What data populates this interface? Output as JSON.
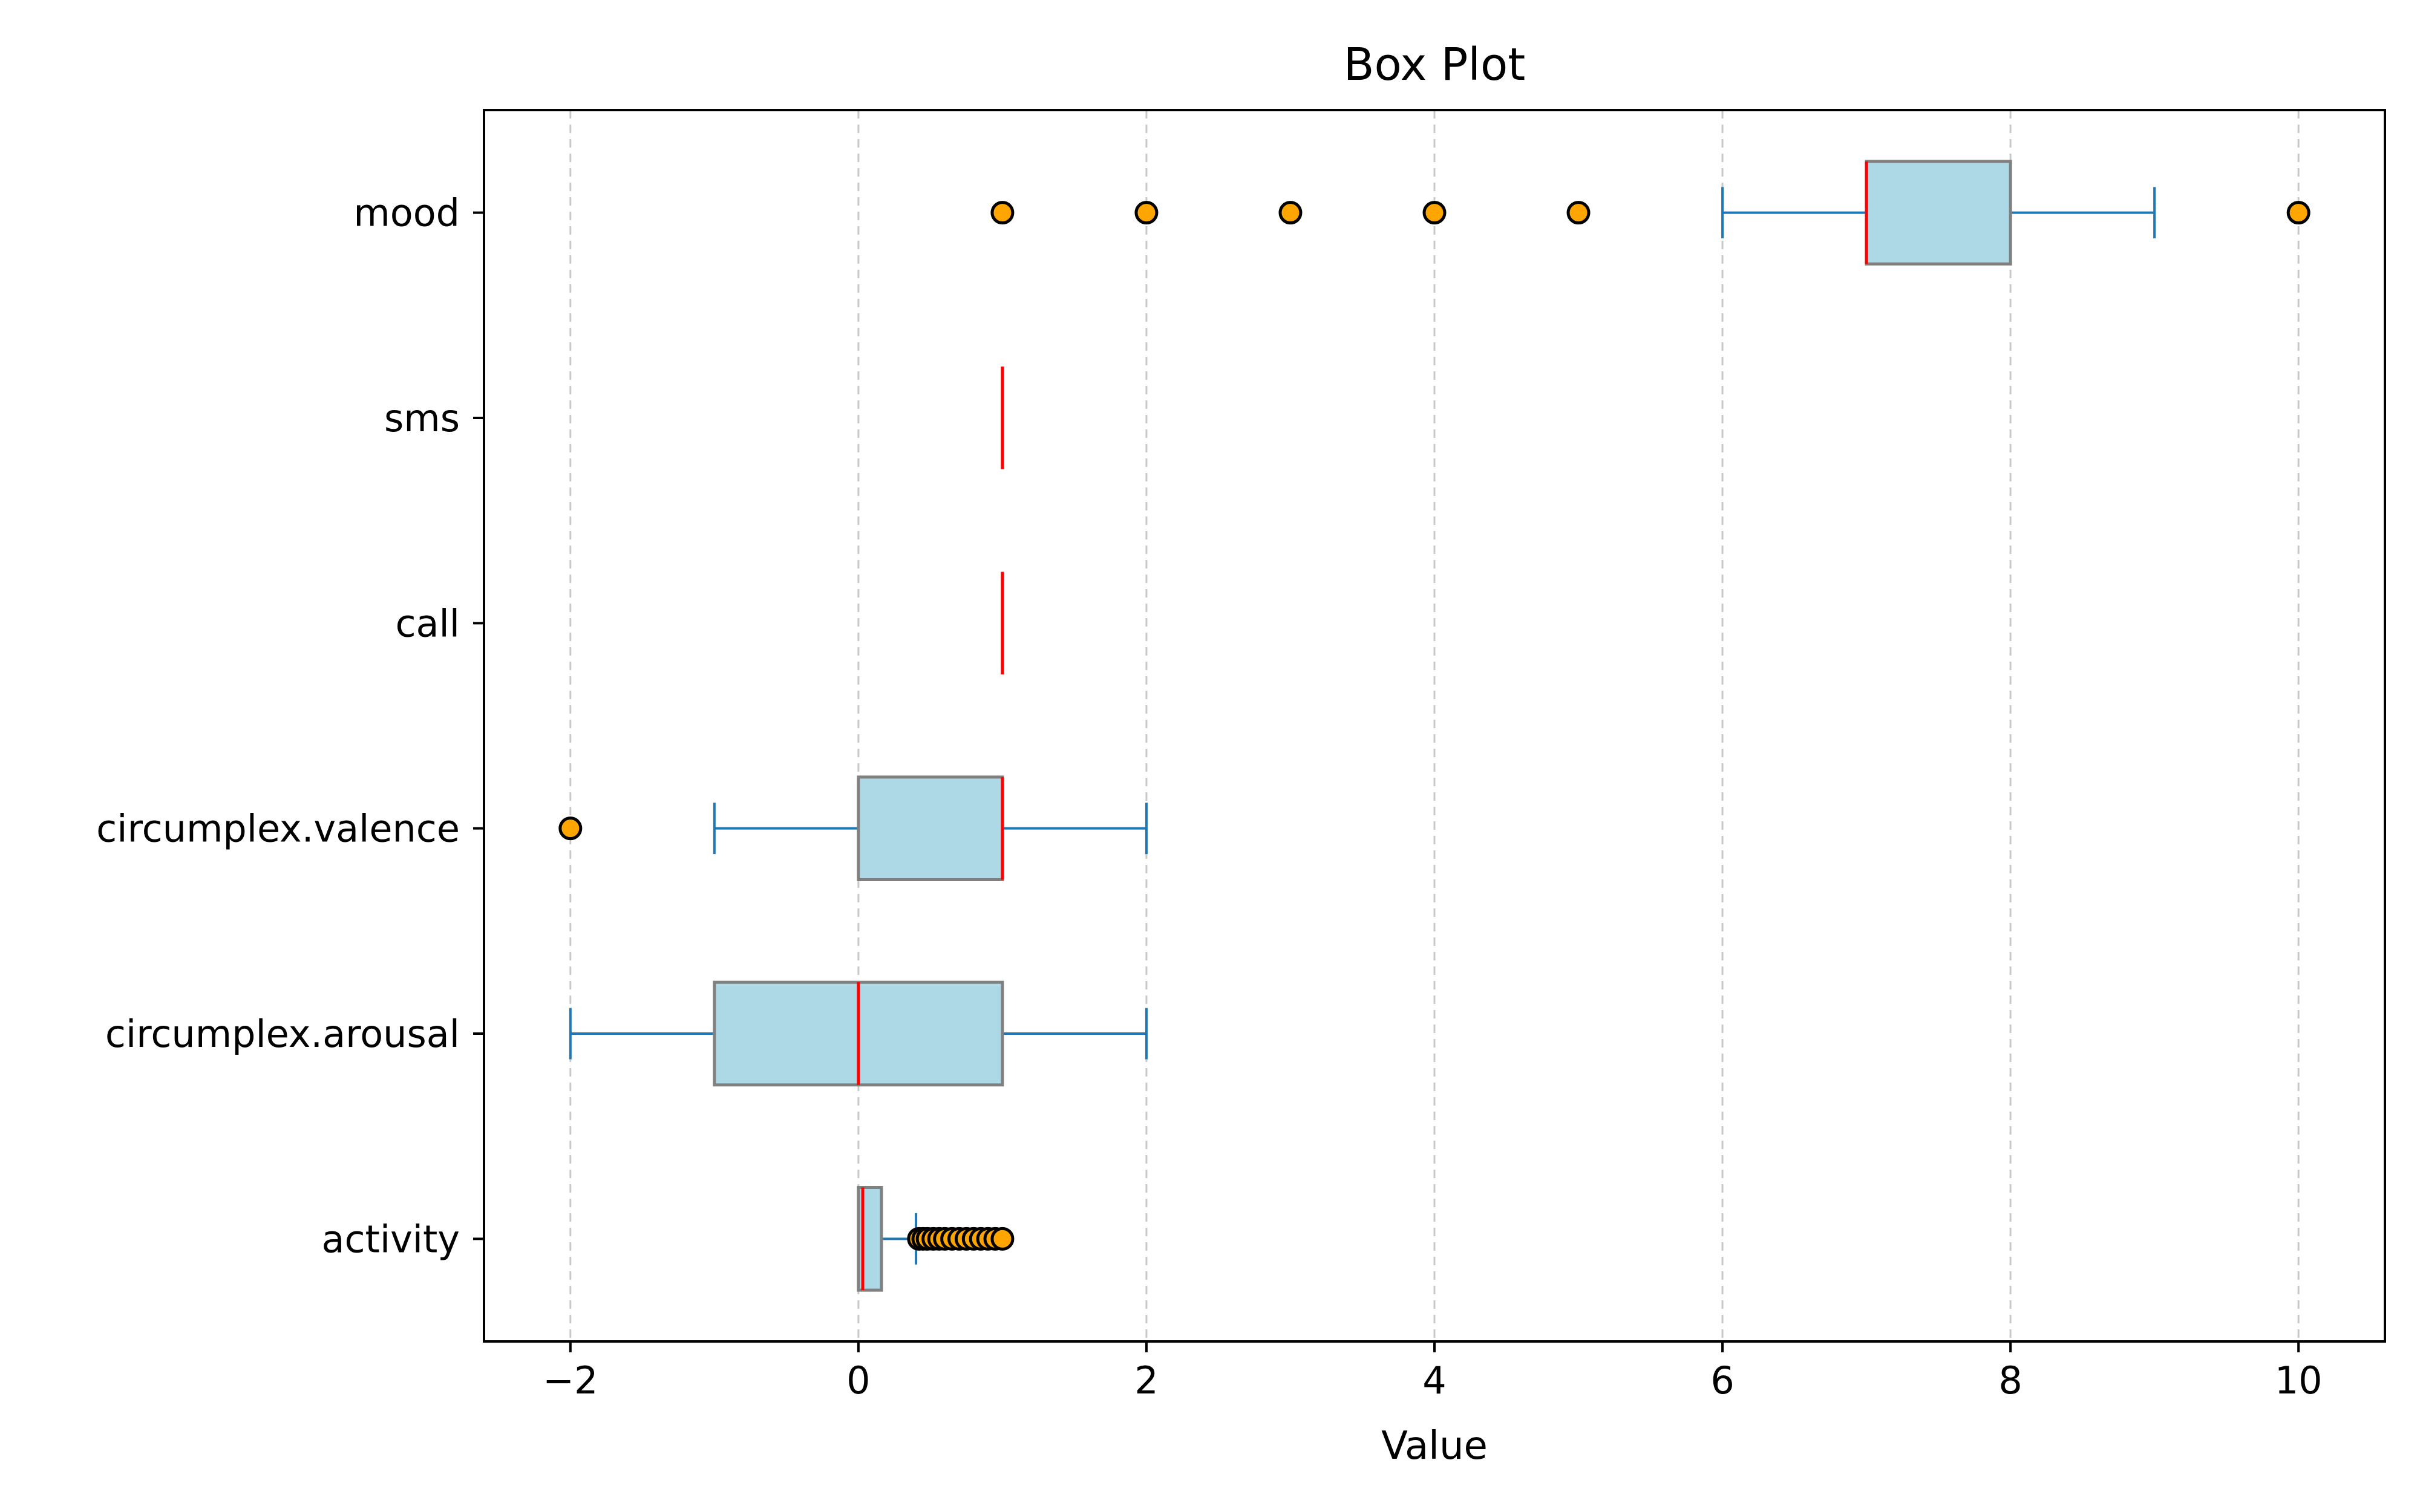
{
  "chart_data": {
    "type": "boxplot",
    "orientation": "horizontal",
    "title": "Box Plot",
    "xlabel": "Value",
    "ylabel": "",
    "xlim": [
      -2.6,
      10.6
    ],
    "xticks": [
      -2,
      0,
      2,
      4,
      6,
      8,
      10
    ],
    "xtick_labels": [
      "−2",
      "0",
      "2",
      "4",
      "6",
      "8",
      "10"
    ],
    "grid": {
      "axis": "x",
      "style": "dashed"
    },
    "categories": [
      "activity",
      "circumplex.arousal",
      "circumplex.valence",
      "call",
      "sms",
      "mood"
    ],
    "boxes": [
      {
        "name": "activity",
        "whisker_low": 0.0,
        "q1": 0.0,
        "median": 0.03,
        "q3": 0.16,
        "whisker_high": 0.4,
        "outliers": [
          0.42,
          0.45,
          0.48,
          0.52,
          0.56,
          0.6,
          0.65,
          0.7,
          0.75,
          0.8,
          0.85,
          0.9,
          0.95,
          1.0
        ]
      },
      {
        "name": "circumplex.arousal",
        "whisker_low": -2,
        "q1": -1,
        "median": 0,
        "q3": 1,
        "whisker_high": 2,
        "outliers": []
      },
      {
        "name": "circumplex.valence",
        "whisker_low": -1,
        "q1": 0,
        "median": 1,
        "q3": 1,
        "whisker_high": 2,
        "outliers": [
          -2
        ]
      },
      {
        "name": "call",
        "whisker_low": 1,
        "q1": 1,
        "median": 1,
        "q3": 1,
        "whisker_high": 1,
        "outliers": []
      },
      {
        "name": "sms",
        "whisker_low": 1,
        "q1": 1,
        "median": 1,
        "q3": 1,
        "whisker_high": 1,
        "outliers": []
      },
      {
        "name": "mood",
        "whisker_low": 6,
        "q1": 7,
        "median": 7,
        "q3": 8,
        "whisker_high": 9,
        "outliers": [
          1,
          2,
          3,
          4,
          5,
          10
        ]
      }
    ],
    "colors": {
      "box_fill": "#add8e6",
      "box_edge": "#808080",
      "median": "#ff0000",
      "whisker": "#1f77b4",
      "outlier_fill": "#ffa500",
      "outlier_edge": "#000000",
      "grid": "#c8c8c8"
    }
  }
}
